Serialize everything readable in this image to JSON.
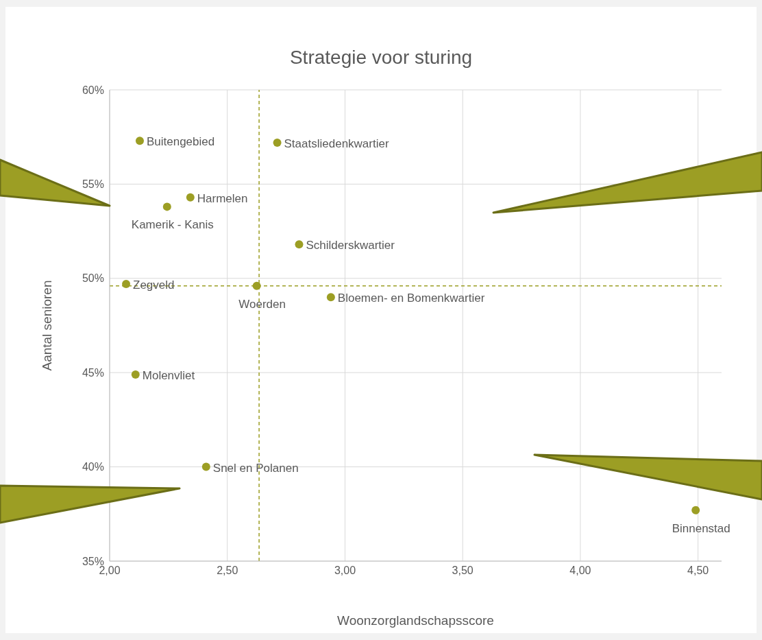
{
  "chart_data": {
    "type": "scatter",
    "title": "Strategie voor sturing",
    "xlabel": "Woonzorglandschapsscore",
    "ylabel": "Aantal senioren",
    "x": [
      2.128,
      2.712,
      2.343,
      2.244,
      2.805,
      2.07,
      2.625,
      2.94,
      2.11,
      2.41,
      4.49
    ],
    "values": [
      57.3,
      57.2,
      54.3,
      53.8,
      51.8,
      49.7,
      49.6,
      49.0,
      44.9,
      40.0,
      37.7
    ],
    "color": "#9c9e24",
    "marker": "circle",
    "grid": true,
    "xlim": [
      2,
      4.6
    ],
    "xticks": [
      {
        "value": 2,
        "label": "2,00"
      },
      {
        "value": 2.5,
        "label": "2,50"
      },
      {
        "value": 3,
        "label": "3,00"
      },
      {
        "value": 3.5,
        "label": "3,50"
      },
      {
        "value": 4,
        "label": "4,00"
      },
      {
        "value": 4.5,
        "label": "4,50"
      }
    ],
    "ylim": [
      35,
      60
    ],
    "yticks": [
      {
        "value": 35,
        "label": "35%"
      },
      {
        "value": 40,
        "label": "40%"
      },
      {
        "value": 45,
        "label": "45%"
      },
      {
        "value": 50,
        "label": "50%"
      },
      {
        "value": 55,
        "label": "55%"
      },
      {
        "value": 60,
        "label": "60%"
      }
    ],
    "ref_lines": [
      {
        "axis": "x",
        "value": 2.635,
        "color": "#9c9e24",
        "line_style": "dashed"
      },
      {
        "axis": "y",
        "value": 49.6,
        "color": "#9c9e24",
        "line_style": "dashed"
      }
    ],
    "annotations": [
      {
        "text": "Buitengebied",
        "x": 2.128,
        "y": 57.3
      },
      {
        "text": "Staatsliedenkwartier",
        "x": 2.712,
        "y": 57.2
      },
      {
        "text": "Harmelen",
        "x": 2.343,
        "y": 54.3
      },
      {
        "text": "Kamerik - Kanis",
        "x": 2.244,
        "y": 53.8
      },
      {
        "text": "Schilderskwartier",
        "x": 2.805,
        "y": 51.8
      },
      {
        "text": "Zegveld",
        "x": 2.07,
        "y": 49.7
      },
      {
        "text": "Woerden",
        "x": 2.625,
        "y": 49.6
      },
      {
        "text": "Bloemen- en Bomenkwartier",
        "x": 2.94,
        "y": 49.0
      },
      {
        "text": "Molenvliet",
        "x": 2.11,
        "y": 44.9
      },
      {
        "text": "Snel en Polanen",
        "x": 2.41,
        "y": 40.0
      },
      {
        "text": "Binnenstad",
        "x": 4.49,
        "y": 37.7
      }
    ]
  }
}
